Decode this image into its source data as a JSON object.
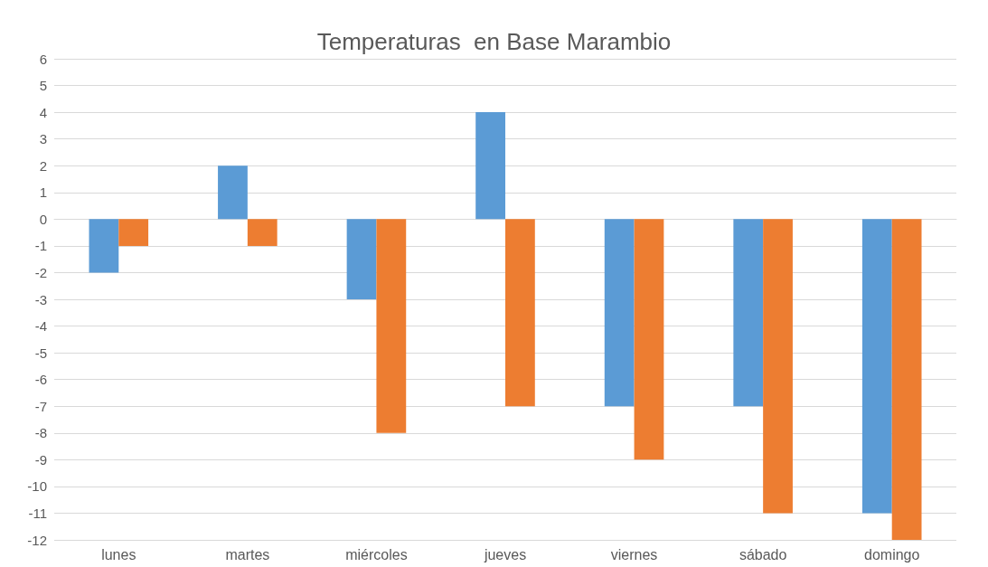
{
  "chart_data": {
    "type": "bar",
    "title": "Temperaturas  en Base Marambio",
    "categories": [
      "lunes",
      "martes",
      "miércoles",
      "jueves",
      "viernes",
      "sábado",
      "domingo"
    ],
    "series": [
      {
        "color": "#5b9bd5",
        "values": [
          -2,
          2,
          -3,
          4,
          -7,
          -7,
          -11
        ]
      },
      {
        "color": "#ed7d31",
        "values": [
          -1,
          -1,
          -8,
          -7,
          -9,
          -11,
          -12
        ]
      }
    ],
    "ylim": [
      -12,
      6
    ],
    "yticks": [
      -12,
      -11,
      -10,
      -9,
      -8,
      -7,
      -6,
      -5,
      -4,
      -3,
      -2,
      -1,
      0,
      1,
      2,
      3,
      4,
      5,
      6
    ],
    "grid": "y"
  }
}
